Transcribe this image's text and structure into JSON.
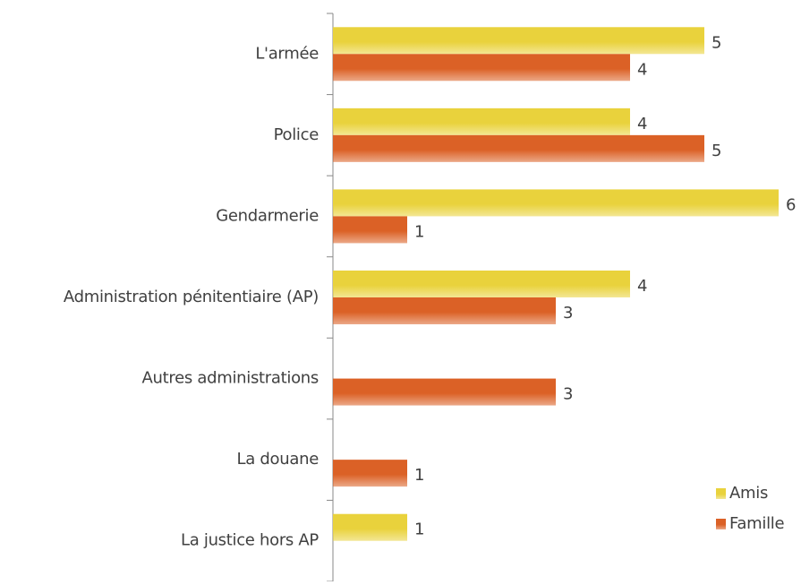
{
  "chart_data": {
    "type": "barh",
    "categories": [
      "L'armée",
      "Police",
      "Gendarmerie",
      "Administration pénitentiaire (AP)",
      "Autres administrations",
      "La douane",
      "La justice hors AP"
    ],
    "series": [
      {
        "name": "Amis",
        "color": "#e9d23c",
        "values": [
          5,
          4,
          6,
          4,
          null,
          null,
          1
        ]
      },
      {
        "name": "Famille",
        "color": "#db6126",
        "values": [
          4,
          5,
          1,
          3,
          3,
          1,
          null
        ]
      }
    ],
    "legend": "right"
  }
}
